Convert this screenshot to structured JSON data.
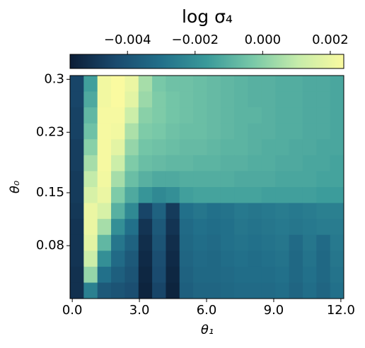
{
  "chart_data": {
    "type": "heatmap",
    "title": "log σ₄",
    "xlabel": "θ₁",
    "ylabel": "θ₀",
    "xlim": [
      -0.1,
      12.13
    ],
    "ylim": [
      0.01,
      0.305
    ],
    "xticks": [
      {
        "value": 0,
        "label": "0.0"
      },
      {
        "value": 3,
        "label": "3.0"
      },
      {
        "value": 6,
        "label": "6.0"
      },
      {
        "value": 9,
        "label": "9.0"
      },
      {
        "value": 12,
        "label": "12.0"
      }
    ],
    "yticks": [
      0.3,
      0.23,
      0.15,
      0.08
    ],
    "clim": [
      -0.0057,
      0.0024
    ],
    "cticks": [
      {
        "value": -0.004,
        "label": "−0.004"
      },
      {
        "value": -0.002,
        "label": "−0.002"
      },
      {
        "value": 0,
        "label": "0.000"
      },
      {
        "value": 0.002,
        "label": "0.002"
      }
    ],
    "colormap": [
      "#0b1d36",
      "#1a4a6e",
      "#22708a",
      "#3a9a9a",
      "#78c8a8",
      "#c6ecaa",
      "#fafaa0"
    ],
    "z": [
      [
        -0.0045,
        -0.0015,
        0.0022,
        0.0024,
        0.002,
        0.0005,
        -0.0003,
        -0.0005,
        -0.0005,
        -0.0006,
        -0.0007,
        -0.0008,
        -0.0009,
        -0.001,
        -0.001,
        -0.0011,
        -0.0011,
        -0.0012,
        -0.0012,
        -0.0013
      ],
      [
        -0.0045,
        -0.0012,
        0.0022,
        0.0024,
        0.0018,
        0.0003,
        -0.0002,
        -0.0004,
        -0.0005,
        -0.0006,
        -0.0007,
        -0.0008,
        -0.0009,
        -0.001,
        -0.001,
        -0.0011,
        -0.0011,
        -0.0012,
        -0.0012,
        -0.0013
      ],
      [
        -0.0046,
        -0.0008,
        0.0023,
        0.0023,
        0.0012,
        0.0,
        -0.0002,
        -0.0004,
        -0.0005,
        -0.0006,
        -0.0007,
        -0.0008,
        -0.0009,
        -0.0009,
        -0.001,
        -0.0011,
        -0.0011,
        -0.0012,
        -0.0012,
        -0.0013
      ],
      [
        -0.0046,
        -0.0005,
        0.0023,
        0.0022,
        0.0006,
        -0.0002,
        -0.0003,
        -0.0005,
        -0.0006,
        -0.0006,
        -0.0007,
        -0.0008,
        -0.0009,
        -0.001,
        -0.001,
        -0.0011,
        -0.0011,
        -0.0012,
        -0.0012,
        -0.0013
      ],
      [
        -0.0047,
        0.0,
        0.0023,
        0.0018,
        0.0002,
        -0.0004,
        -0.0005,
        -0.0006,
        -0.0007,
        -0.0007,
        -0.0008,
        -0.0009,
        -0.0009,
        -0.001,
        -0.0011,
        -0.0011,
        -0.0012,
        -0.0012,
        -0.0013,
        -0.0013
      ],
      [
        -0.0047,
        0.0005,
        0.0023,
        0.0012,
        -0.0002,
        -0.0006,
        -0.0007,
        -0.0008,
        -0.0008,
        -0.0009,
        -0.0009,
        -0.001,
        -0.001,
        -0.0011,
        -0.0011,
        -0.0012,
        -0.0012,
        -0.0013,
        -0.0013,
        -0.0014
      ],
      [
        -0.0048,
        0.001,
        0.0022,
        0.0005,
        -0.0006,
        -0.001,
        -0.0012,
        -0.0012,
        -0.0011,
        -0.0011,
        -0.0011,
        -0.0011,
        -0.0012,
        -0.0012,
        -0.0012,
        -0.0013,
        -0.0013,
        -0.0013,
        -0.0014,
        -0.0014
      ],
      [
        -0.0048,
        0.0015,
        0.002,
        -0.0002,
        -0.0012,
        -0.0018,
        -0.0022,
        -0.002,
        -0.0015,
        -0.0014,
        -0.0014,
        -0.0014,
        -0.0014,
        -0.0014,
        -0.0015,
        -0.0015,
        -0.0015,
        -0.0015,
        -0.0016,
        -0.0016
      ],
      [
        -0.0049,
        0.002,
        0.0015,
        -0.001,
        -0.0022,
        -0.0045,
        -0.0035,
        -0.0048,
        -0.003,
        -0.0028,
        -0.003,
        -0.0029,
        -0.0027,
        -0.0028,
        -0.0027,
        -0.0026,
        -0.0027,
        -0.0026,
        -0.0025,
        -0.0025
      ],
      [
        -0.005,
        0.002,
        0.0005,
        -0.002,
        -0.003,
        -0.005,
        -0.0038,
        -0.005,
        -0.0032,
        -0.003,
        -0.0031,
        -0.003,
        -0.0028,
        -0.0029,
        -0.0028,
        -0.0027,
        -0.0028,
        -0.0027,
        -0.0026,
        -0.0026
      ],
      [
        -0.005,
        0.0018,
        -0.0008,
        -0.0028,
        -0.0035,
        -0.0052,
        -0.004,
        -0.0052,
        -0.0033,
        -0.0031,
        -0.0032,
        -0.003,
        -0.0029,
        -0.003,
        -0.0029,
        -0.0028,
        -0.0032,
        -0.0028,
        -0.0032,
        -0.0027
      ],
      [
        -0.005,
        0.0012,
        -0.002,
        -0.0032,
        -0.0038,
        -0.0053,
        -0.0042,
        -0.0053,
        -0.0034,
        -0.0032,
        -0.0033,
        -0.0031,
        -0.003,
        -0.0031,
        -0.003,
        -0.0029,
        -0.0033,
        -0.0029,
        -0.0033,
        -0.0028
      ],
      [
        -0.0051,
        0.0002,
        -0.003,
        -0.0036,
        -0.004,
        -0.0054,
        -0.0043,
        -0.0054,
        -0.0035,
        -0.0033,
        -0.0033,
        -0.0032,
        -0.0031,
        -0.0031,
        -0.0031,
        -0.003,
        -0.0033,
        -0.003,
        -0.0033,
        -0.0029
      ],
      [
        -0.0051,
        -0.0025,
        -0.0038,
        -0.004,
        -0.0042,
        -0.0055,
        -0.0045,
        -0.0055,
        -0.0036,
        -0.0034,
        -0.0034,
        -0.0033,
        -0.0032,
        -0.0032,
        -0.0032,
        -0.0031,
        -0.0034,
        -0.0031,
        -0.0034,
        -0.003
      ]
    ]
  }
}
